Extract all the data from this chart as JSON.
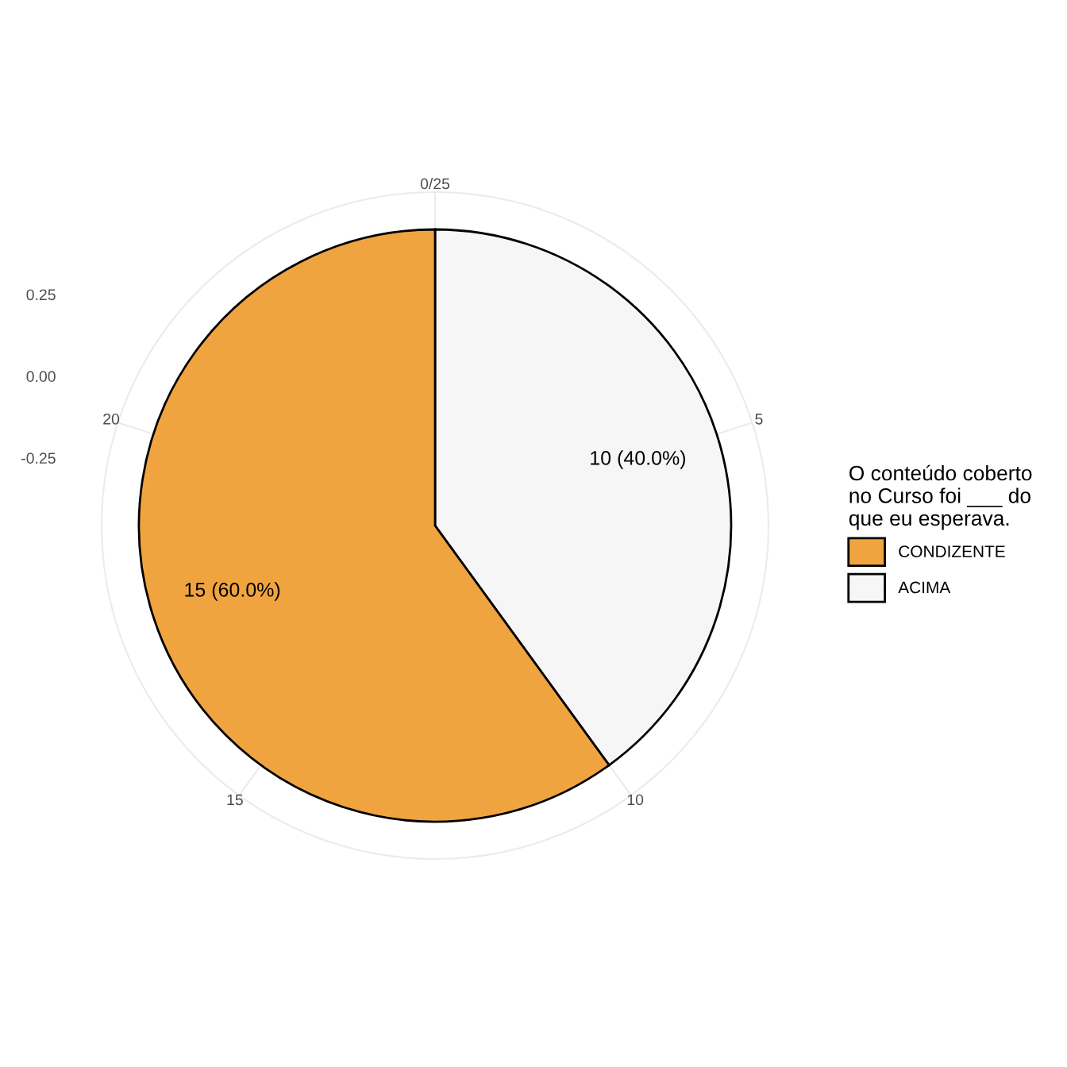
{
  "chart_data": {
    "type": "pie",
    "legend_title": "O conteúdo coberto\nno Curso foi ___ do\nque eu esperava.",
    "categories": [
      "CONDIZENTE",
      "ACIMA"
    ],
    "values": [
      15,
      10
    ],
    "colors": [
      "#f0a440",
      "#f6f6f6"
    ],
    "value_labels": [
      "15 (60.0%)",
      "10 (40.0%)"
    ],
    "annotations": [
      "0/25",
      "5",
      "10",
      "15",
      "20",
      "0.25",
      "0.00",
      "-0.25"
    ],
    "grid": true,
    "legend": "right"
  }
}
